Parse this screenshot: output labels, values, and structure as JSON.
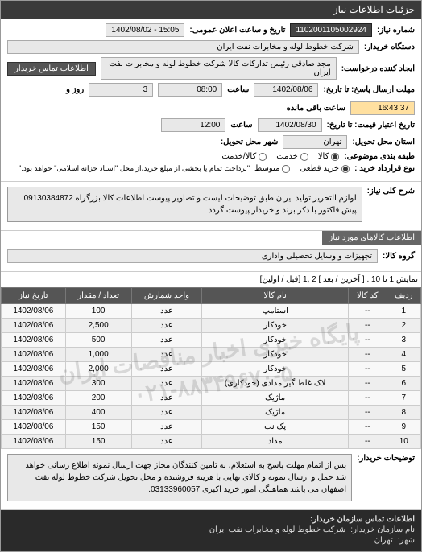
{
  "header": {
    "title": "جزئیات اطلاعات نیاز"
  },
  "info": {
    "req_number_label": "شماره نیاز:",
    "req_number": "1102001105002924",
    "announce_label": "تاریخ و ساعت اعلان عمومی:",
    "announce_value": "15:05 - 1402/08/02",
    "buyer_label": "دستگاه خریدار:",
    "buyer_value": "شرکت خطوط لوله و مخابرات نفت ایران",
    "requester_label": "ایجاد کننده درخواست:",
    "requester_value": "مجد صادقی رئیس تدارکات کالا  شرکت خطوط لوله و مخابرات نفت ایران",
    "contact_btn": "اطلاعات تماس خریدار",
    "deadline_label": "مهلت ارسال پاسخ: تا تاریخ:",
    "deadline_date": "1402/08/06",
    "time_label": "ساعت",
    "deadline_time": "08:00",
    "days_remain": "3",
    "days_label": "روز و",
    "countdown": "16:43:37",
    "countdown_label": "ساعت باقی مانده",
    "validity_label": "تاریخ اعتبار قیمت: تا تاریخ:",
    "validity_date": "1402/08/30",
    "validity_time": "12:00",
    "delivery_place_label": "استان محل تحویل:",
    "delivery_place": "تهران",
    "delivery_city_label": "شهر محل تحویل:",
    "pkg_label": "طبقه بندی موضوعی:",
    "pkg_options": [
      {
        "label": "کالا",
        "checked": true
      },
      {
        "label": "خدمت",
        "checked": false
      },
      {
        "label": "کالا/خدمت",
        "checked": false
      }
    ],
    "contract_label": "نوع قرارداد خرید :",
    "contract_options": [
      {
        "label": "خرید قطعی",
        "checked": true
      },
      {
        "label": "متوسط",
        "checked": false
      }
    ],
    "contract_note": "\"پرداخت تمام یا بخشی از مبلغ خرید،از محل \"اسناد خزانه اسلامی\" خواهد بود.\"",
    "desc_label": "شرح کلی نیاز:",
    "desc_text": "لوازم التحریر تولید ایران طبق توضیحات لیست و تصاویر پیوست اطلاعات کالا بزرگراه 09130384872 پیش فاکتور با ذکر برند و خریدار پیوست گردد"
  },
  "goods": {
    "section_title": "اطلاعات کالاهای مورد نیاز",
    "group_label": "گروه کالا:",
    "group_value": "تجهیزات و وسایل تحصیلی واداری",
    "pager_text": "نمایش 1 تا 10 .",
    "pager_links": "[ آخرین / بعد ] 2 ,1 [قبل / اولین]",
    "columns": [
      "ردیف",
      "کد کالا",
      "نام کالا",
      "واحد شمارش",
      "تعداد / مقدار",
      "تاریخ نیاز"
    ],
    "rows": [
      [
        "1",
        "--",
        "استامپ",
        "عدد",
        "100",
        "1402/08/06"
      ],
      [
        "2",
        "--",
        "خودکار",
        "عدد",
        "2,500",
        "1402/08/06"
      ],
      [
        "3",
        "--",
        "خودکار",
        "عدد",
        "500",
        "1402/08/06"
      ],
      [
        "4",
        "--",
        "خودکار",
        "عدد",
        "1,000",
        "1402/08/06"
      ],
      [
        "5",
        "--",
        "خودکار",
        "عدد",
        "2,000",
        "1402/08/06"
      ],
      [
        "6",
        "--",
        "لاک غلط گیر مدادی (خودکاری)",
        "عدد",
        "300",
        "1402/08/06"
      ],
      [
        "7",
        "--",
        "ماژیک",
        "عدد",
        "200",
        "1402/08/06"
      ],
      [
        "8",
        "--",
        "ماژیک",
        "عدد",
        "400",
        "1402/08/06"
      ],
      [
        "9",
        "--",
        "پک نت",
        "عدد",
        "150",
        "1402/08/06"
      ],
      [
        "10",
        "--",
        "مداد",
        "عدد",
        "150",
        "1402/08/06"
      ]
    ],
    "watermark_line1": "پایگاه خبری اخبار مناقصات ایران",
    "watermark_line2": "۰۲۱-۸۸۳۴۹۶۷۰-۵"
  },
  "notes": {
    "label": "توضیحات خریدار:",
    "text": "پس از اتمام مهلت پاسخ به استعلام، به تامین کنندگان مجاز جهت ارسال نمونه اطلاع رسانی خواهد شد حمل و ارسال نمونه و کالای نهایی با هزینه فروشنده و محل تحویل شرکت خطوط لوله نفت اصفهان می باشد هماهنگی امور خرید اکبری 03133960057."
  },
  "footer": {
    "title": "اطلاعات تماس سازمان خریدار:",
    "org_label": "نام سازمان خریدار:",
    "org_value": "شرکت خطوط لوله و مخابرات نفت ایران",
    "city_label": "شهر:",
    "city_value": "تهران"
  }
}
